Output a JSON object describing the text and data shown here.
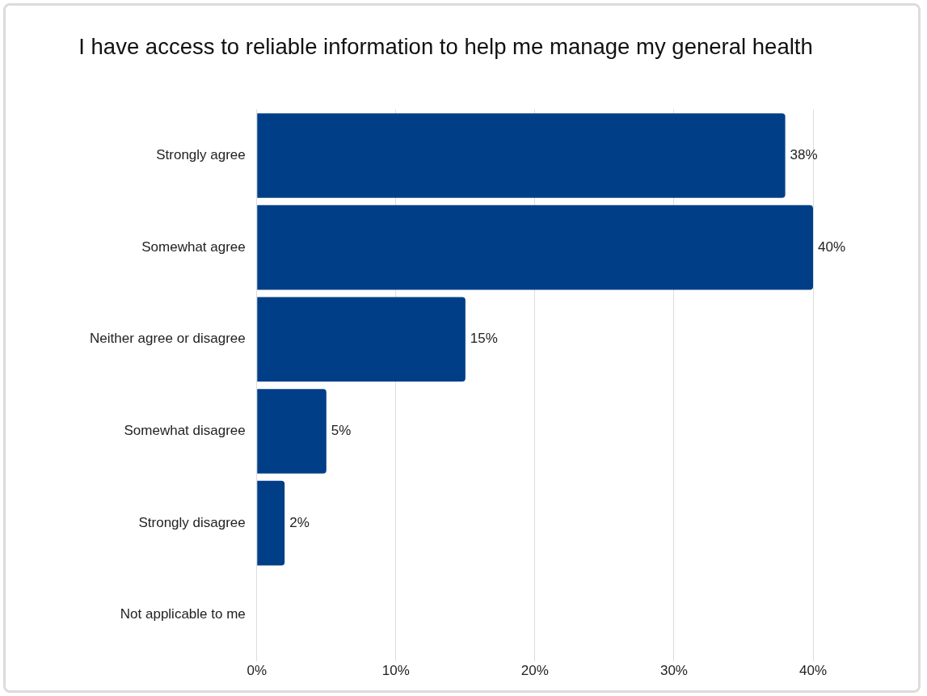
{
  "chart_data": {
    "type": "bar",
    "orientation": "horizontal",
    "title": "I have access to reliable information to help me manage my general health",
    "categories": [
      "Strongly agree",
      "Somewhat agree",
      "Neither agree or disagree",
      "Somewhat disagree",
      "Strongly disagree",
      "Not applicable to me"
    ],
    "values": [
      38,
      40,
      15,
      5,
      2,
      null
    ],
    "value_labels": [
      "38%",
      "40%",
      "15%",
      "5%",
      "2%",
      null
    ],
    "color": "#003f87",
    "xlim": [
      0,
      40
    ],
    "xticks": [
      {
        "value": 0,
        "label": "0%"
      },
      {
        "value": 10,
        "label": "10%"
      },
      {
        "value": 20,
        "label": "20%"
      },
      {
        "value": 30,
        "label": "30%"
      },
      {
        "value": 40,
        "label": "40%"
      }
    ],
    "grid": "x",
    "legend": false
  }
}
